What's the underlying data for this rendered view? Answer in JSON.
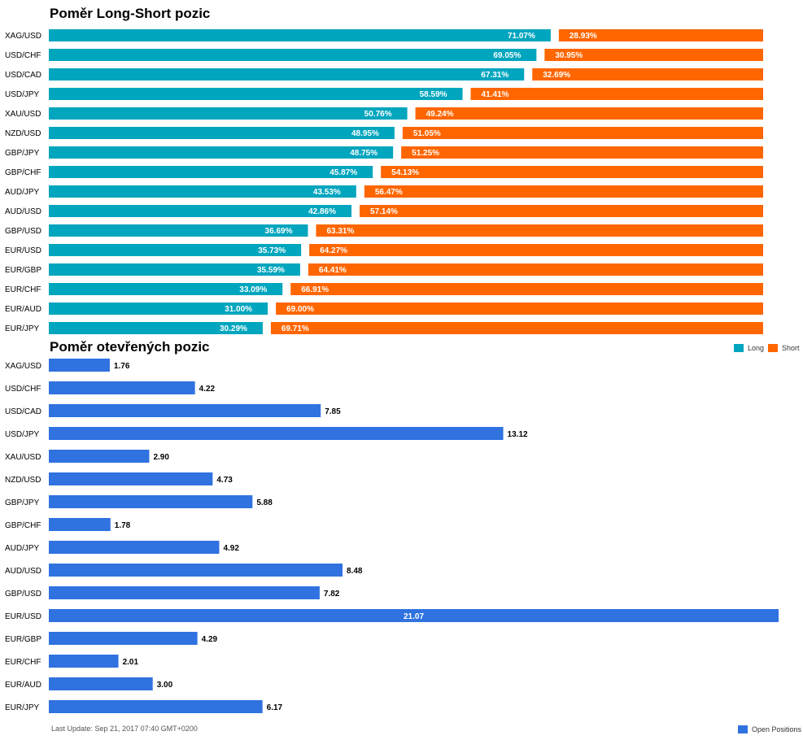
{
  "colors": {
    "long": "#00a5be",
    "short": "#ff6600",
    "open": "#2f72e0"
  },
  "chart_data": [
    {
      "type": "bar",
      "stacked": true,
      "orientation": "horizontal",
      "title": "Poměr Long-Short pozic",
      "categories": [
        "XAG/USD",
        "USD/CHF",
        "USD/CAD",
        "USD/JPY",
        "XAU/USD",
        "NZD/USD",
        "GBP/JPY",
        "GBP/CHF",
        "AUD/JPY",
        "AUD/USD",
        "GBP/USD",
        "EUR/USD",
        "EUR/GBP",
        "EUR/CHF",
        "EUR/AUD",
        "EUR/JPY"
      ],
      "series": [
        {
          "name": "Long",
          "values": [
            71.07,
            69.05,
            67.31,
            58.59,
            50.76,
            48.95,
            48.75,
            45.87,
            43.53,
            42.86,
            36.69,
            35.73,
            35.59,
            33.09,
            31.0,
            30.29
          ],
          "labels": [
            "71.07%",
            "69.05%",
            "67.31%",
            "58.59%",
            "50.76%",
            "48.95%",
            "48.75%",
            "45.87%",
            "43.53%",
            "42.86%",
            "36.69%",
            "35.73%",
            "35.59%",
            "33.09%",
            "31.00%",
            "30.29%"
          ]
        },
        {
          "name": "Short",
          "values": [
            28.93,
            30.95,
            32.69,
            41.41,
            49.24,
            51.05,
            51.25,
            54.13,
            56.47,
            57.14,
            63.31,
            64.27,
            64.41,
            66.91,
            69.0,
            69.71
          ],
          "labels": [
            "28.93%",
            "30.95%",
            "32.69%",
            "41.41%",
            "49.24%",
            "51.05%",
            "51.25%",
            "54.13%",
            "56.47%",
            "57.14%",
            "63.31%",
            "64.27%",
            "64.41%",
            "66.91%",
            "69.00%",
            "69.71%"
          ]
        }
      ],
      "xlim": [
        0,
        100
      ],
      "legend": "top-right"
    },
    {
      "type": "bar",
      "orientation": "horizontal",
      "title": "Poměr otevřených pozic",
      "categories": [
        "XAG/USD",
        "USD/CHF",
        "USD/CAD",
        "USD/JPY",
        "XAU/USD",
        "NZD/USD",
        "GBP/JPY",
        "GBP/CHF",
        "AUD/JPY",
        "AUD/USD",
        "GBP/USD",
        "EUR/USD",
        "EUR/GBP",
        "EUR/CHF",
        "EUR/AUD",
        "EUR/JPY"
      ],
      "series": [
        {
          "name": "Open Positions",
          "values": [
            1.76,
            4.22,
            7.85,
            13.12,
            2.9,
            4.73,
            5.88,
            1.78,
            4.92,
            8.48,
            7.82,
            21.07,
            4.29,
            2.01,
            3.0,
            6.17
          ],
          "labels": [
            "1.76",
            "4.22",
            "7.85",
            "13.12",
            "2.90",
            "4.73",
            "5.88",
            "1.78",
            "4.92",
            "8.48",
            "7.82",
            "21.07",
            "4.29",
            "2.01",
            "3.00",
            "6.17"
          ]
        }
      ],
      "xlim": [
        0,
        21.07
      ],
      "legend": "bottom-right"
    }
  ],
  "footer": {
    "last_update": "Last Update: Sep 21, 2017 07:40 GMT+0200"
  }
}
